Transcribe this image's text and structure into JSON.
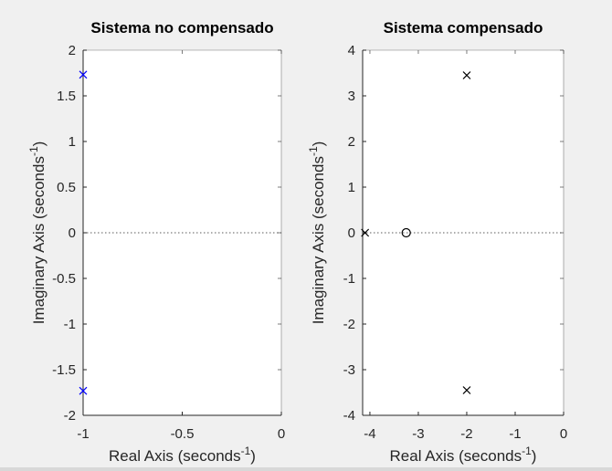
{
  "chart_data": [
    {
      "type": "pole-zero",
      "title": "Sistema no compensado",
      "xlabel": "Real Axis (seconds",
      "ylabel": "Imaginary Axis (seconds",
      "label_superscript": "-1",
      "label_close": ")",
      "xlim": [
        -1,
        0
      ],
      "ylim": [
        -2,
        2
      ],
      "xticks": [
        -1,
        -0.5,
        0
      ],
      "xtick_labels": [
        "-1",
        "-0.5",
        "0"
      ],
      "yticks": [
        -2,
        -1.5,
        -1,
        -0.5,
        0,
        0.5,
        1,
        1.5,
        2
      ],
      "ytick_labels": [
        "-2",
        "-1.5",
        "-1",
        "-0.5",
        "0",
        "0.5",
        "1",
        "1.5",
        "2"
      ],
      "poles": [
        {
          "re": -1,
          "im": 1.732
        },
        {
          "re": -1,
          "im": -1.732
        }
      ],
      "zeros": [],
      "marker_color": "#0000ff",
      "zero_line": true
    },
    {
      "type": "pole-zero",
      "title": "Sistema compensado",
      "xlabel": "Real Axis (seconds",
      "ylabel": "Imaginary Axis (seconds",
      "label_superscript": "-1",
      "label_close": ")",
      "xlim": [
        -4.15,
        0
      ],
      "ylim": [
        -4,
        4
      ],
      "xticks": [
        -4,
        -3,
        -2,
        -1,
        0
      ],
      "xtick_labels": [
        "-4",
        "-3",
        "-2",
        "-1",
        "0"
      ],
      "yticks": [
        -4,
        -3,
        -2,
        -1,
        0,
        1,
        2,
        3,
        4
      ],
      "ytick_labels": [
        "-4",
        "-3",
        "-2",
        "-1",
        "0",
        "1",
        "2",
        "3",
        "4"
      ],
      "poles": [
        {
          "re": -4.1,
          "im": 0
        },
        {
          "re": -2,
          "im": 3.45
        },
        {
          "re": -2,
          "im": -3.45
        }
      ],
      "zeros": [
        {
          "re": -3.25,
          "im": 0
        }
      ],
      "marker_color": "#000000",
      "zero_line": true
    }
  ]
}
